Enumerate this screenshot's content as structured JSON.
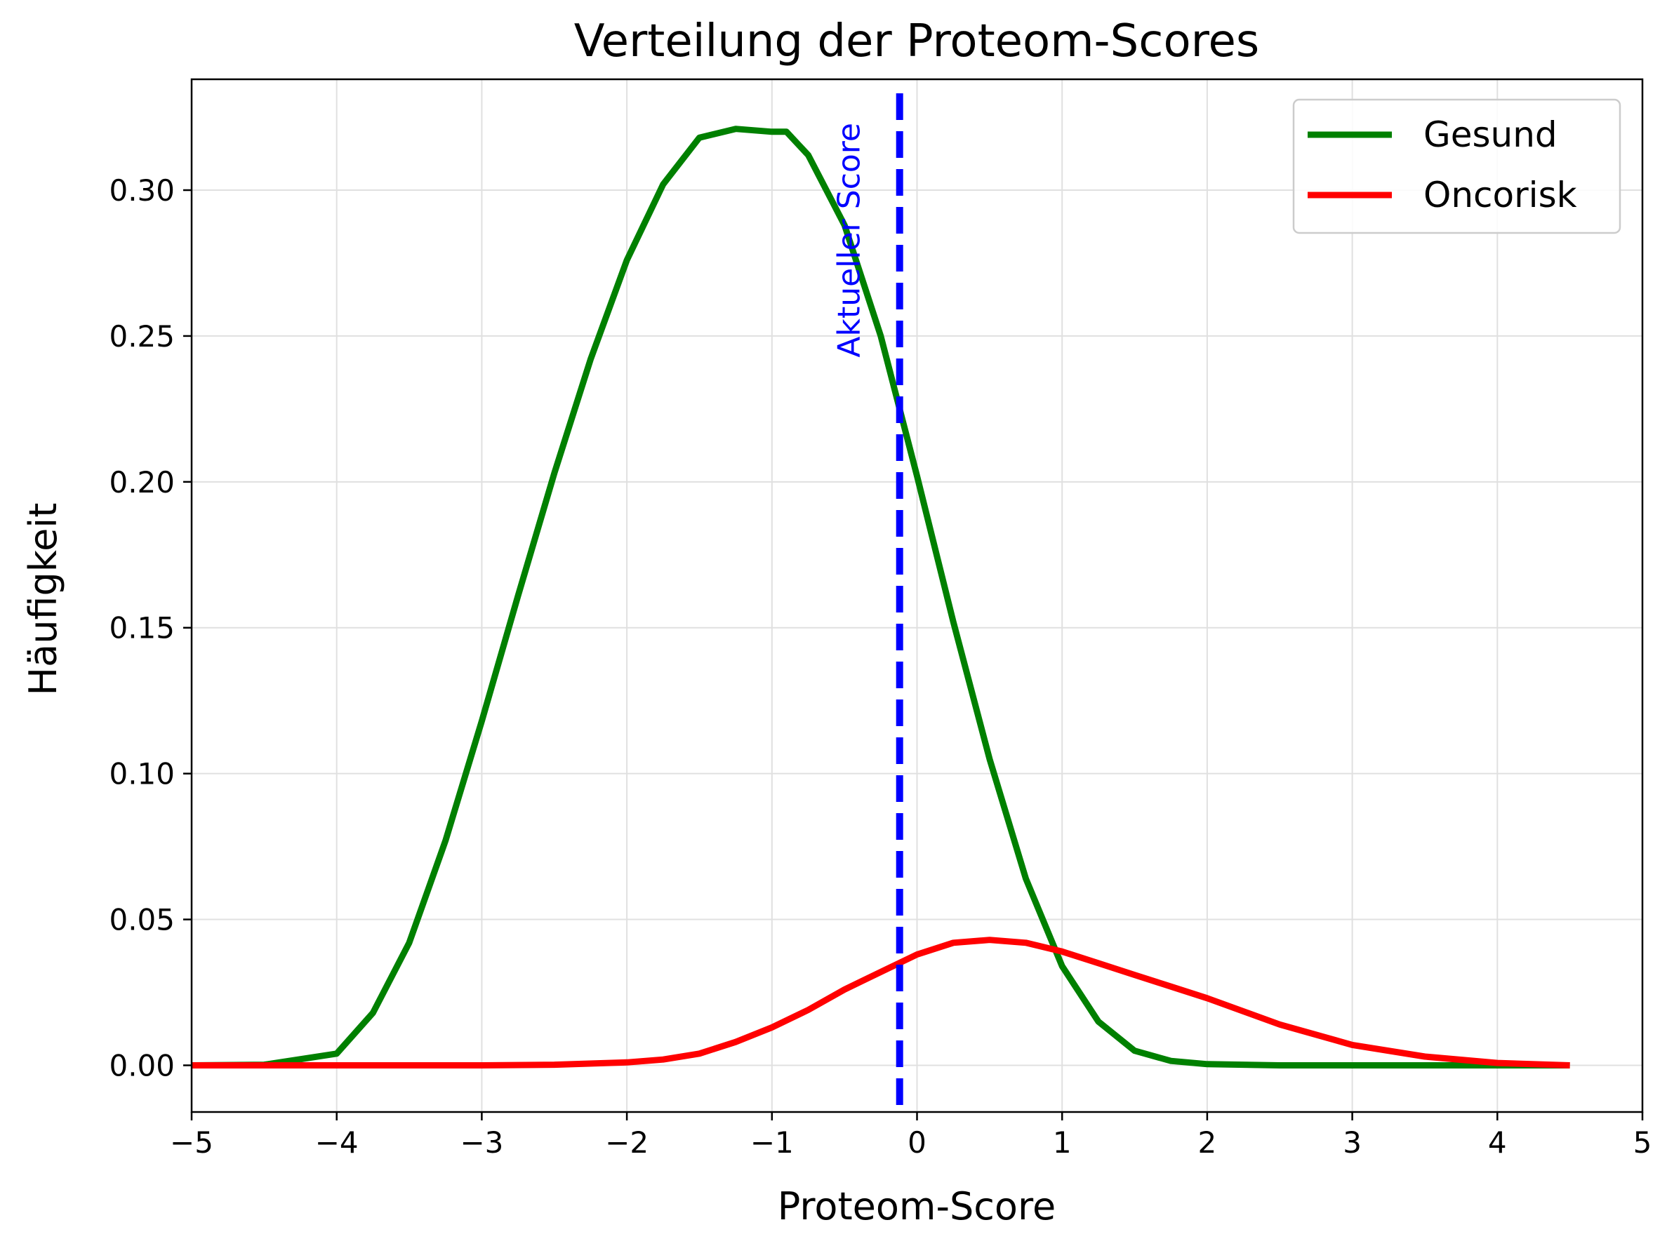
{
  "chart_data": {
    "type": "line",
    "title": "Verteilung der Proteom-Scores",
    "xlabel": "Proteom-Score",
    "ylabel": "Häufigkeit",
    "xlim": [
      -5,
      5
    ],
    "ylim": [
      -0.016,
      0.338
    ],
    "xticks": [
      -5,
      -4,
      -3,
      -2,
      -1,
      0,
      1,
      2,
      3,
      4,
      5
    ],
    "xtick_labels": [
      "−5",
      "−4",
      "−3",
      "−2",
      "−1",
      "0",
      "1",
      "2",
      "3",
      "4",
      "5"
    ],
    "yticks": [
      0.0,
      0.05,
      0.1,
      0.15,
      0.2,
      0.25,
      0.3
    ],
    "ytick_labels": [
      "0.00",
      "0.05",
      "0.10",
      "0.15",
      "0.20",
      "0.25",
      "0.30"
    ],
    "grid": true,
    "legend_position": "top-right",
    "series": [
      {
        "name": "Gesund",
        "color": "#008000",
        "x": [
          -5.0,
          -4.5,
          -4.0,
          -3.75,
          -3.5,
          -3.25,
          -3.0,
          -2.75,
          -2.5,
          -2.25,
          -2.0,
          -1.75,
          -1.5,
          -1.25,
          -1.0,
          -0.9,
          -0.75,
          -0.5,
          -0.25,
          0.0,
          0.25,
          0.5,
          0.75,
          1.0,
          1.25,
          1.5,
          1.75,
          2.0,
          2.5,
          3.0,
          3.5,
          4.0,
          4.5
        ],
        "y": [
          0.0,
          0.0002,
          0.004,
          0.018,
          0.042,
          0.077,
          0.118,
          0.161,
          0.203,
          0.242,
          0.276,
          0.302,
          0.318,
          0.321,
          0.32,
          0.32,
          0.312,
          0.288,
          0.25,
          0.202,
          0.152,
          0.105,
          0.064,
          0.034,
          0.015,
          0.005,
          0.0015,
          0.0004,
          0.0,
          0.0,
          0.0,
          0.0,
          0.0
        ]
      },
      {
        "name": "Oncorisk",
        "color": "#ff0000",
        "x": [
          -5.0,
          -4.5,
          -4.0,
          -3.5,
          -3.0,
          -2.5,
          -2.0,
          -1.75,
          -1.5,
          -1.25,
          -1.0,
          -0.75,
          -0.5,
          -0.25,
          0.0,
          0.25,
          0.5,
          0.75,
          1.0,
          1.25,
          1.5,
          1.75,
          2.0,
          2.5,
          3.0,
          3.5,
          4.0,
          4.5
        ],
        "y": [
          0.0,
          0.0,
          0.0,
          0.0,
          0.0,
          0.0002,
          0.001,
          0.002,
          0.004,
          0.008,
          0.013,
          0.019,
          0.026,
          0.032,
          0.038,
          0.042,
          0.043,
          0.042,
          0.039,
          0.035,
          0.031,
          0.027,
          0.023,
          0.014,
          0.007,
          0.003,
          0.0008,
          0.0
        ]
      }
    ],
    "vline": {
      "x": -0.12,
      "color": "#0000ff",
      "style": "dashed",
      "label": "Aktueller Score"
    }
  }
}
